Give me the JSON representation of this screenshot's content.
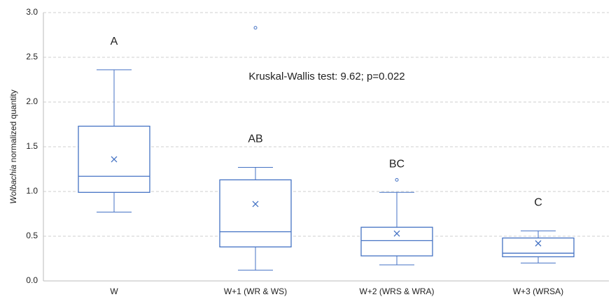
{
  "chart_data": {
    "type": "box",
    "ylabel": [
      "Wolbachia",
      "normalized quantity"
    ],
    "annotation": "Kruskal-Wallis test: 9.62; p=0.022",
    "categories": [
      "W",
      "W+1 (WR & WS)",
      "W+2 (WRS & WRA)",
      "W+3 (WRSA)"
    ],
    "letters": [
      "A",
      "AB",
      "BC",
      "C"
    ],
    "color": "#4472c4",
    "boxes": [
      {
        "low": 0.77,
        "q1": 0.99,
        "median": 1.17,
        "q3": 1.73,
        "high": 2.36,
        "mean": 1.36,
        "outliers": []
      },
      {
        "low": 0.12,
        "q1": 0.38,
        "median": 0.55,
        "q3": 1.13,
        "high": 1.27,
        "mean": 0.86,
        "outliers": [
          2.83
        ]
      },
      {
        "low": 0.18,
        "q1": 0.28,
        "median": 0.45,
        "q3": 0.6,
        "high": 0.99,
        "mean": 0.53,
        "outliers": [
          1.13
        ]
      },
      {
        "low": 0.2,
        "q1": 0.27,
        "median": 0.31,
        "q3": 0.48,
        "high": 0.56,
        "mean": 0.42,
        "outliers": []
      }
    ],
    "ylim": [
      0,
      3
    ],
    "yticks": [
      {
        "value": 0,
        "label": "0.0"
      },
      0.5,
      {
        "value": 1,
        "label": "1.0"
      },
      1.5,
      {
        "value": 2,
        "label": "2.0"
      },
      2.5,
      {
        "value": 3,
        "label": "3.0"
      }
    ],
    "grid": true
  }
}
